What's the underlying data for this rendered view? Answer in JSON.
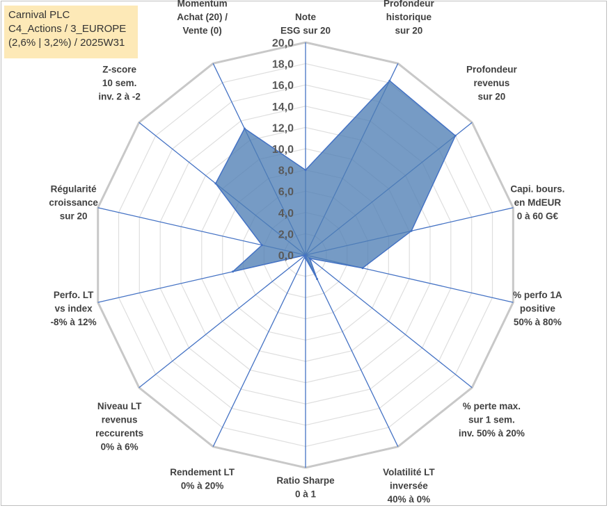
{
  "info": {
    "company": "Carnival PLC",
    "category": "C4_Actions / 3_EUROPE",
    "period": "(2,6% | 3,2%) / 2025W31"
  },
  "colors": {
    "area_fill": "#4f7fb5",
    "area_stroke": "#4472c4",
    "axis_line": "#4472c4",
    "grid_outer": "#c8c8c8",
    "grid_inner": "#dedede",
    "info_box_bg": "#fde9b7"
  },
  "chart_data": {
    "type": "radar",
    "title": "",
    "range": [
      0,
      20
    ],
    "ticks": [
      "0,0",
      "2,0",
      "4,0",
      "6,0",
      "8,0",
      "10,0",
      "12,0",
      "14,0",
      "16,0",
      "18,0",
      "20,0"
    ],
    "axes": [
      {
        "label_lines": [
          "Note",
          "ESG sur 20"
        ],
        "value": 8.0
      },
      {
        "label_lines": [
          "Profondeur",
          "historique",
          "sur 20"
        ],
        "value": 18.2
      },
      {
        "label_lines": [
          "Profondeur",
          "revenus",
          "sur 20"
        ],
        "value": 18.0
      },
      {
        "label_lines": [
          "Capi. bours.",
          "en MdEUR",
          "0 à 60 G€"
        ],
        "value": 10.2
      },
      {
        "label_lines": [
          "% perfo 1A",
          "positive",
          "50% à 80%"
        ],
        "value": 5.5
      },
      {
        "label_lines": [
          "% perte max.",
          "sur 1 sem.",
          "inv. 50% à 20%"
        ],
        "value": 0.5
      },
      {
        "label_lines": [
          "Volatilité LT",
          "inversée",
          "40% à 0%"
        ],
        "value": 2.5
      },
      {
        "label_lines": [
          "Ratio Sharpe",
          "0 à 1"
        ],
        "value": 0.3
      },
      {
        "label_lines": [
          "Rendement LT",
          "0% à 20%"
        ],
        "value": 0.0
      },
      {
        "label_lines": [
          "Niveau LT",
          "revenus",
          "reccurents",
          "0% à 6%"
        ],
        "value": 0.0
      },
      {
        "label_lines": [
          "Perfo. LT",
          "vs index",
          "-8% à 12%"
        ],
        "value": 7.0
      },
      {
        "label_lines": [
          "Régularité",
          "croissance",
          "sur 20"
        ],
        "value": 4.2
      },
      {
        "label_lines": [
          "Z-score",
          "10 sem.",
          "inv. 2 à -2"
        ],
        "value": 10.8
      },
      {
        "label_lines": [
          "Momentum",
          "Achat (20) /",
          "Vente (0)"
        ],
        "value": 13.2
      }
    ]
  }
}
